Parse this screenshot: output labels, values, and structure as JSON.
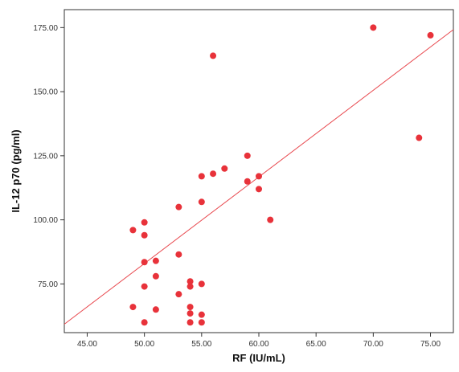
{
  "chart_data": {
    "type": "scatter",
    "xlabel": "RF (IU/mL)",
    "ylabel": "IL-12 p70 (pg/ml)",
    "xlim": [
      43.0,
      77.0
    ],
    "ylim": [
      56.0,
      182.0
    ],
    "x_ticks": [
      "45.00",
      "50.00",
      "55.00",
      "60.00",
      "65.00",
      "70.00",
      "75.00"
    ],
    "y_ticks": [
      "75.00",
      "100.00",
      "125.00",
      "150.00",
      "175.00"
    ],
    "x_tick_values": [
      45,
      50,
      55,
      60,
      65,
      70,
      75
    ],
    "y_tick_values": [
      75,
      100,
      125,
      150,
      175
    ],
    "grid": false,
    "legend": "none",
    "point_color": "#e8323a",
    "line_color": "#e8484e",
    "fit_line": {
      "x": [
        43.0,
        77.0
      ],
      "y": [
        59.3,
        174.2
      ]
    },
    "points": [
      {
        "x": 49,
        "y": 96
      },
      {
        "x": 49,
        "y": 66
      },
      {
        "x": 50,
        "y": 99
      },
      {
        "x": 50,
        "y": 94
      },
      {
        "x": 50,
        "y": 83.5
      },
      {
        "x": 50,
        "y": 74
      },
      {
        "x": 50,
        "y": 60
      },
      {
        "x": 51,
        "y": 84
      },
      {
        "x": 51,
        "y": 78
      },
      {
        "x": 51,
        "y": 65
      },
      {
        "x": 53,
        "y": 105
      },
      {
        "x": 53,
        "y": 86.5
      },
      {
        "x": 53,
        "y": 71
      },
      {
        "x": 54,
        "y": 76
      },
      {
        "x": 54,
        "y": 74
      },
      {
        "x": 54,
        "y": 66
      },
      {
        "x": 54,
        "y": 63.5
      },
      {
        "x": 54,
        "y": 60
      },
      {
        "x": 55,
        "y": 117
      },
      {
        "x": 55,
        "y": 107
      },
      {
        "x": 55,
        "y": 75
      },
      {
        "x": 55,
        "y": 63
      },
      {
        "x": 55,
        "y": 60
      },
      {
        "x": 56,
        "y": 164
      },
      {
        "x": 56,
        "y": 118
      },
      {
        "x": 57,
        "y": 120
      },
      {
        "x": 59,
        "y": 125
      },
      {
        "x": 59,
        "y": 115
      },
      {
        "x": 60,
        "y": 117
      },
      {
        "x": 60,
        "y": 112
      },
      {
        "x": 61,
        "y": 100
      },
      {
        "x": 70,
        "y": 175
      },
      {
        "x": 74,
        "y": 132
      },
      {
        "x": 75,
        "y": 172
      }
    ]
  }
}
